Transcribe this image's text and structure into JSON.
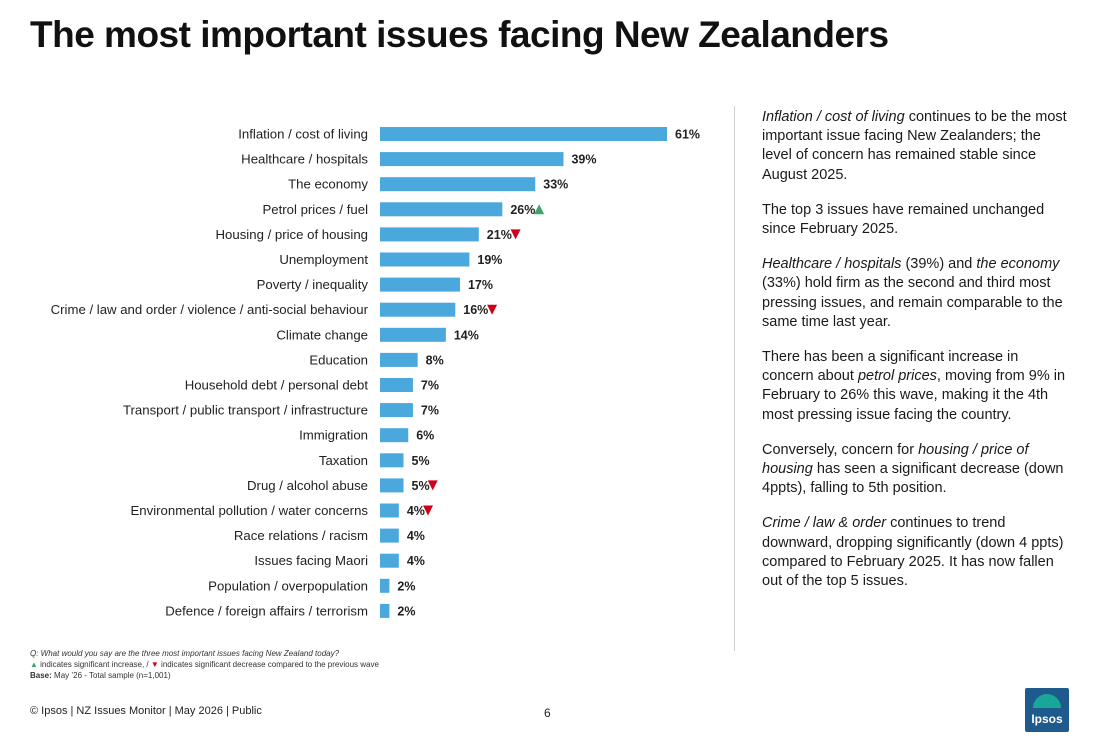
{
  "title": "The most important issues facing New Zealanders",
  "chart_data": {
    "type": "bar",
    "orientation": "horizontal",
    "categories": [
      "Inflation / cost of living",
      "Healthcare / hospitals",
      "The economy",
      "Petrol prices / fuel",
      "Housing / price of housing",
      "Unemployment",
      "Poverty / inequality",
      "Crime / law and order / violence / anti-social behaviour",
      "Climate change",
      "Education",
      "Household debt / personal debt",
      "Transport / public transport / infrastructure",
      "Immigration",
      "Taxation",
      "Drug / alcohol abuse",
      "Environmental pollution / water concerns",
      "Race relations / racism",
      "Issues facing Maori",
      "Population / overpopulation",
      "Defence / foreign affairs / terrorism"
    ],
    "values": [
      61,
      39,
      33,
      26,
      21,
      19,
      17,
      16,
      14,
      8,
      7,
      7,
      6,
      5,
      5,
      4,
      4,
      4,
      2,
      2
    ],
    "value_labels": [
      "61%",
      "39%",
      "33%",
      "26%",
      "21%",
      "19%",
      "17%",
      "16%",
      "14%",
      "8%",
      "7%",
      "7%",
      "6%",
      "5%",
      "5%",
      "4%",
      "4%",
      "4%",
      "2%",
      "2%"
    ],
    "significance": [
      "",
      "",
      "",
      "up",
      "down",
      "",
      "",
      "down",
      "",
      "",
      "",
      "",
      "",
      "",
      "down",
      "down",
      "",
      "",
      "",
      ""
    ],
    "xlim": [
      0,
      61
    ],
    "grid": false,
    "bar_color": "#4aa8dc",
    "up_color": "#3aa66b",
    "down_color": "#d0021b"
  },
  "commentary": [
    [
      {
        "t": "Inflation / cost of living",
        "i": true
      },
      {
        "t": " continues to be the most important issue facing New Zealanders; the level of concern has remained stable since August 2025."
      }
    ],
    [
      {
        "t": "The top 3 issues have remained unchanged since February 2025."
      }
    ],
    [
      {
        "t": "Healthcare / hospitals",
        "i": true
      },
      {
        "t": " (39%) and "
      },
      {
        "t": "the economy",
        "i": true
      },
      {
        "t": " (33%) hold firm as the second and third most pressing issues, and remain comparable to the same time last year."
      }
    ],
    [
      {
        "t": "There has been a significant increase in concern about "
      },
      {
        "t": "petrol prices",
        "i": true
      },
      {
        "t": ", moving from 9% in February to 26% this wave, making it the 4th most pressing issue facing the country."
      }
    ],
    [
      {
        "t": "Conversely, concern for "
      },
      {
        "t": "housing / price of housing",
        "i": true
      },
      {
        "t": " has seen a significant decrease (down 4ppts), falling to 5th position."
      }
    ],
    [
      {
        "t": "Crime / law & order",
        "i": true
      },
      {
        "t": " continues to trend downward, dropping significantly (down 4 ppts) compared to February 2025. It has now fallen out of the top 5 issues."
      }
    ]
  ],
  "notes": {
    "question": "Q: What would you say are the three most important issues facing New Zealand today?",
    "up_symbol": "▲",
    "legend_up": "indicates significant increase, /",
    "down_symbol": "▼",
    "legend_down": "indicates significant decrease compared to the previous wave",
    "base_label": "Base:",
    "base_text": "May ’26 - Total sample (n=1,001)"
  },
  "footer": "© Ipsos | NZ Issues Monitor | May 2026 | Public",
  "page_number": "6",
  "logo_text": "Ipsos",
  "colors": {
    "bar": "#4aa8dc",
    "logo_blue": "#1f5a8c",
    "logo_teal": "#19a79a"
  }
}
